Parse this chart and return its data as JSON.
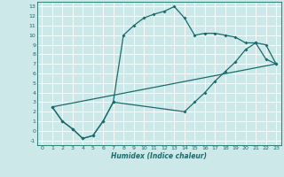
{
  "xlabel": "Humidex (Indice chaleur)",
  "bg_color": "#cde8e8",
  "grid_color": "#b0d0d0",
  "line_color": "#1a6b6b",
  "marker": "D",
  "markersize": 2.0,
  "linewidth": 0.9,
  "xlim": [
    -0.5,
    23.5
  ],
  "ylim": [
    -1.5,
    13.5
  ],
  "xticks": [
    0,
    1,
    2,
    3,
    4,
    5,
    6,
    7,
    8,
    9,
    10,
    11,
    12,
    13,
    14,
    15,
    16,
    17,
    18,
    19,
    20,
    21,
    22,
    23
  ],
  "yticks": [
    -1,
    0,
    1,
    2,
    3,
    4,
    5,
    6,
    7,
    8,
    9,
    10,
    11,
    12,
    13
  ],
  "line1_x": [
    1,
    2,
    3,
    4,
    5,
    6,
    7,
    8,
    9,
    10,
    11,
    12,
    13,
    14,
    15,
    16,
    17,
    18,
    19,
    20,
    21,
    22,
    23
  ],
  "line1_y": [
    2.5,
    1.0,
    0.2,
    -0.8,
    -0.5,
    1.0,
    3.0,
    10.0,
    11.0,
    11.8,
    12.2,
    12.5,
    13.0,
    11.8,
    10.0,
    10.2,
    10.2,
    10.0,
    9.8,
    9.2,
    9.2,
    7.5,
    7.0
  ],
  "line2_x": [
    1,
    2,
    3,
    4,
    5,
    6,
    7,
    14,
    15,
    16,
    17,
    18,
    19,
    20,
    21,
    22,
    23
  ],
  "line2_y": [
    2.5,
    1.0,
    0.2,
    -0.8,
    -0.5,
    1.0,
    3.0,
    2.0,
    3.0,
    4.0,
    5.2,
    6.2,
    7.2,
    8.5,
    9.2,
    9.0,
    7.0
  ],
  "line3_x": [
    1,
    23
  ],
  "line3_y": [
    2.5,
    7.0
  ]
}
